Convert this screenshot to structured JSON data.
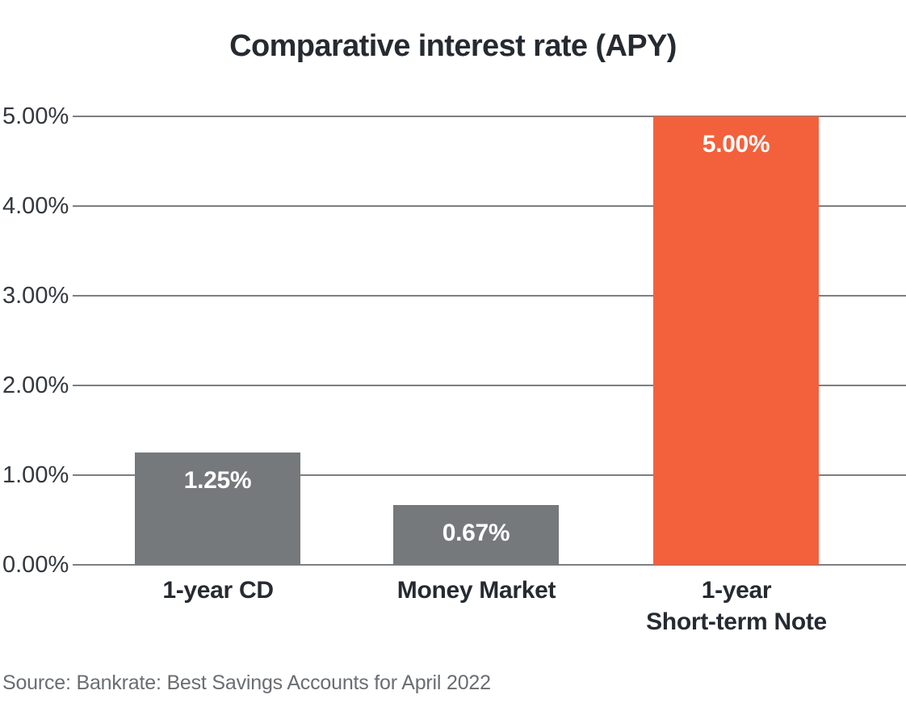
{
  "chart_data": {
    "type": "bar",
    "title": "Comparative interest rate (APY)",
    "categories": [
      "1-year CD",
      "Money Market",
      "1-year\nShort-term Note"
    ],
    "values": [
      1.25,
      0.67,
      5.0
    ],
    "value_labels": [
      "1.25%",
      "0.67%",
      "5.00%"
    ],
    "bar_colors": [
      "#75797c",
      "#75797c",
      "#f2613c"
    ],
    "xlabel": "",
    "ylabel": "",
    "ylim": [
      0,
      5
    ],
    "ytick_labels": [
      "0.00%",
      "1.00%",
      "2.00%",
      "3.00%",
      "4.00%",
      "5.00%"
    ],
    "grid": true,
    "legend_position": "none",
    "source": "Source: Bankrate: Best Savings Accounts for April 2022"
  },
  "colors": {
    "background": "#ffffff",
    "title_text": "#262a31",
    "axis_text": "#33383e",
    "category_text": "#262a31",
    "gridline": "#7c7f82",
    "bar_gray": "#75797c",
    "bar_orange": "#f2613c",
    "value_label_text": "#ffffff",
    "source_text": "#6a6e72"
  }
}
